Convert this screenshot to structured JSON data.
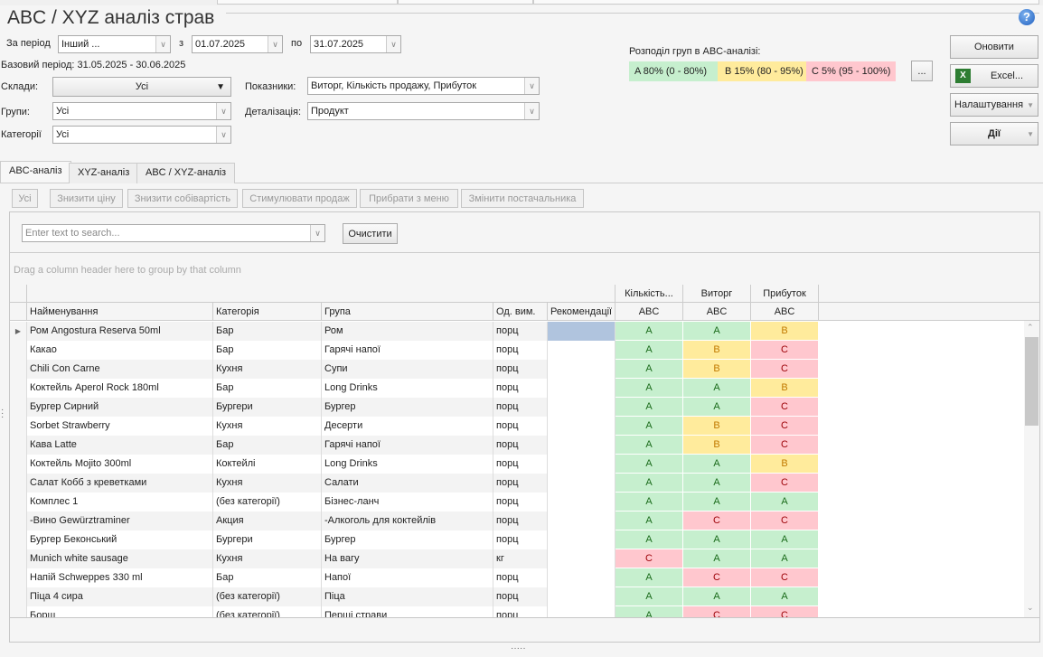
{
  "title": "ABC / XYZ аналіз страв",
  "filters": {
    "period_label": "За період",
    "period_value": "Інший ...",
    "from_label": "з",
    "from_value": "01.07.2025",
    "to_label": "по",
    "to_value": "31.07.2025",
    "base_period": "Базовий період: 31.05.2025 - 30.06.2025",
    "warehouses_label": "Склади:",
    "warehouses_value": "Усі",
    "groups_label": "Групи:",
    "groups_value": "Усі",
    "categories_label": "Категорії",
    "categories_value": "Усі",
    "indicators_label": "Показники:",
    "indicators_value": "Виторг, Кількість продажу, Прибуток",
    "detail_label": "Деталізація:",
    "detail_value": "Продукт"
  },
  "abc_groups": {
    "label": "Розподіл груп в ABC-аналізі:",
    "a": "A 80% (0 - 80%)",
    "b": "B 15% (80 - 95%)",
    "c": "C 5% (95 - 100%)",
    "more": "...",
    "colors": {
      "A": "#c6efce",
      "B": "#ffeb9c",
      "C": "#ffc7ce"
    }
  },
  "buttons": {
    "refresh": "Оновити",
    "excel": "Excel...",
    "settings": "Налаштування",
    "actions": "Дії"
  },
  "tabs": [
    "ABC-аналіз",
    "XYZ-аналіз",
    "ABC / XYZ-аналіз"
  ],
  "filter_buttons": [
    "Усі",
    "Знизити ціну",
    "Знизити собівартість",
    "Стимулювати продаж",
    "Прибрати з меню",
    "Змінити постачальника"
  ],
  "search": {
    "placeholder": "Enter text to search...",
    "clear": "Очистити"
  },
  "group_panel": "Drag a column header here to group by that column",
  "columns": {
    "name": "Найменування",
    "category": "Категорія",
    "group": "Група",
    "unit": "Од. вим.",
    "recommendations": "Рекомендації",
    "qty": "Кількість...",
    "revenue": "Виторг",
    "profit": "Прибуток",
    "abc": "ABC"
  },
  "rows": [
    [
      "Ром Angostura Reserva 50ml",
      "Бар",
      "Ром",
      "порц",
      "A",
      "A",
      "B"
    ],
    [
      "Какао",
      "Бар",
      "Гарячі напої",
      "порц",
      "A",
      "B",
      "C"
    ],
    [
      "Chili Con Carne",
      "Кухня",
      "Супи",
      "порц",
      "A",
      "B",
      "C"
    ],
    [
      "Коктейль Aperol Rock 180ml",
      "Бар",
      "Long Drinks",
      "порц",
      "A",
      "A",
      "B"
    ],
    [
      "Бургер Сирний",
      "Бургери",
      "Бургер",
      "порц",
      "A",
      "A",
      "C"
    ],
    [
      "Sorbet Strawberry",
      "Кухня",
      "Десерти",
      "порц",
      "A",
      "B",
      "C"
    ],
    [
      "Кава Latte",
      "Бар",
      "Гарячі напої",
      "порц",
      "A",
      "B",
      "C"
    ],
    [
      "Коктейль Mojito 300ml",
      "Коктейлі",
      "Long Drinks",
      "порц",
      "A",
      "A",
      "B"
    ],
    [
      "Салат Кобб з креветками",
      "Кухня",
      "Салати",
      "порц",
      "A",
      "A",
      "C"
    ],
    [
      "Комплес 1",
      "(без категорії)",
      "Бізнес-ланч",
      "порц",
      "A",
      "A",
      "A"
    ],
    [
      "-Вино Gewürztraminer",
      "Акция",
      "-Алкоголь для коктейлів",
      "порц",
      "A",
      "C",
      "C"
    ],
    [
      "Бургер Беконський",
      "Бургери",
      "Бургер",
      "порц",
      "A",
      "A",
      "A"
    ],
    [
      "Munich white sausage",
      "Кухня",
      "На вагу",
      "кг",
      "C",
      "A",
      "A"
    ],
    [
      "Напій Schweppes 330 ml",
      "Бар",
      "Напої",
      "порц",
      "A",
      "C",
      "C"
    ],
    [
      "Піца 4 сира",
      "(без категорії)",
      "Піца",
      "порц",
      "A",
      "A",
      "A"
    ],
    [
      "Борщ",
      "(без категорії)",
      "Перші страви",
      "порц",
      "A",
      "C",
      "C"
    ]
  ]
}
